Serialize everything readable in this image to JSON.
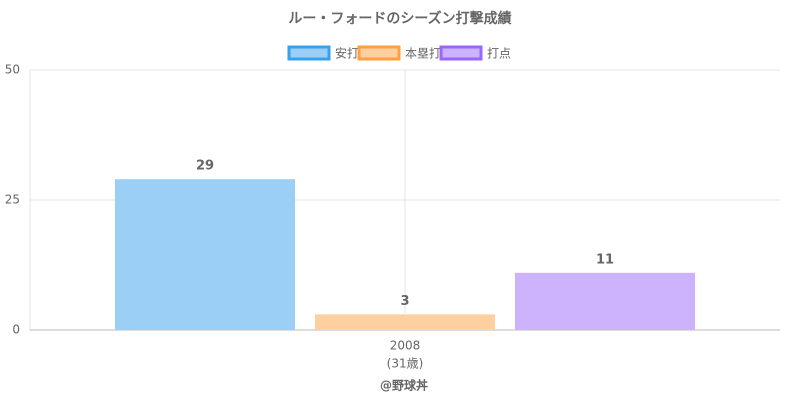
{
  "chart_data": {
    "type": "bar",
    "title": "ルー・フォードのシーズン打撃成績",
    "categories": [
      "2008"
    ],
    "category_sublabels": [
      "(31歳)"
    ],
    "series": [
      {
        "name": "安打",
        "color": "#9ccff5",
        "border": "#36a2eb",
        "values": [
          29
        ]
      },
      {
        "name": "本塁打",
        "color": "#fecf9f",
        "border": "#ff9f40",
        "values": [
          3
        ]
      },
      {
        "name": "打点",
        "color": "#cdb3fd",
        "border": "#9966ff",
        "values": [
          11
        ]
      }
    ],
    "ylim": [
      0,
      50
    ],
    "yticks": [
      0,
      25,
      50
    ],
    "grid": true,
    "legend": "top",
    "footer": "@野球丼"
  }
}
